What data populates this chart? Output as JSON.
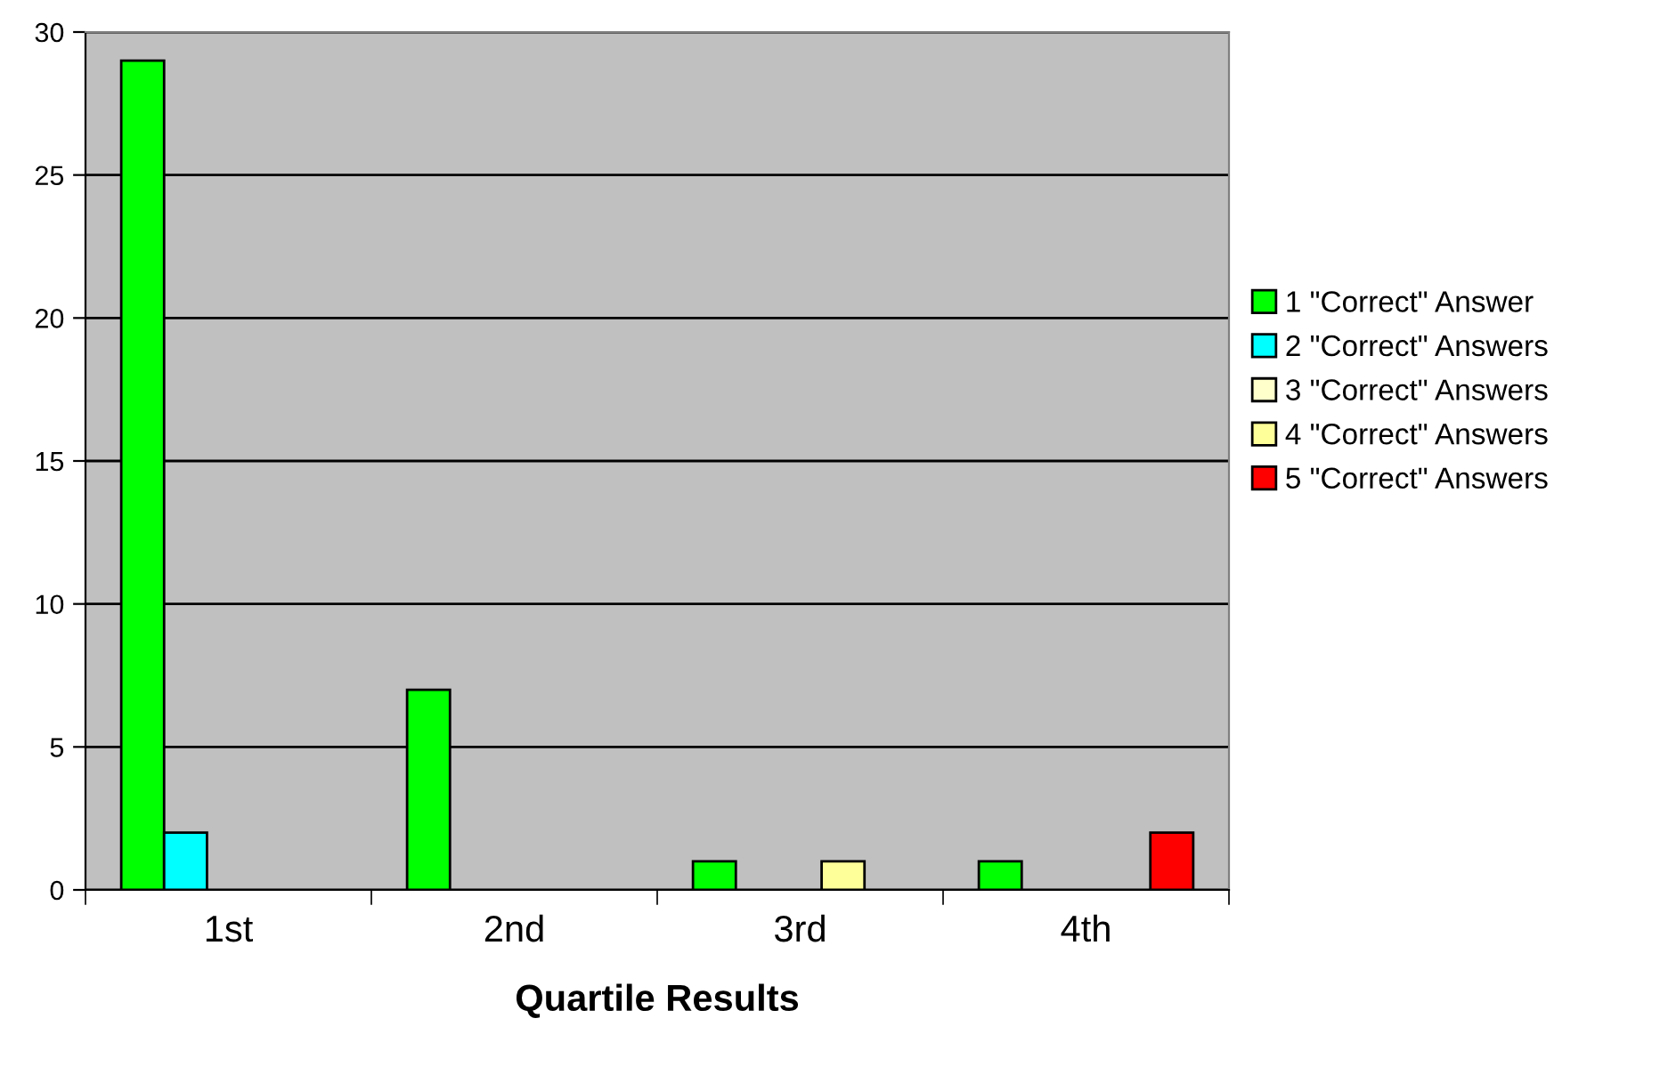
{
  "chart_data": {
    "type": "bar",
    "xlabel": "Quartile Results",
    "categories": [
      "1st",
      "2nd",
      "3rd",
      "4th"
    ],
    "series": [
      {
        "name": "1 \"Correct\" Answer",
        "color": "#00ff00",
        "values": [
          29,
          7,
          1,
          1
        ]
      },
      {
        "name": "2 \"Correct\" Answers",
        "color": "#00ffff",
        "values": [
          2,
          null,
          null,
          null
        ]
      },
      {
        "name": "3 \"Correct\" Answers",
        "color": "#ffffcc",
        "values": [
          null,
          null,
          null,
          null
        ]
      },
      {
        "name": "4 \"Correct\" Answers",
        "color": "#ffff99",
        "values": [
          null,
          null,
          1,
          null
        ]
      },
      {
        "name": "5 \"Correct\" Answers",
        "color": "#ff0000",
        "values": [
          null,
          null,
          null,
          2
        ]
      }
    ],
    "ylim": [
      0,
      30
    ],
    "yticks": [
      0,
      5,
      10,
      15,
      20,
      25,
      30
    ],
    "grid": "y",
    "legend": "right"
  }
}
